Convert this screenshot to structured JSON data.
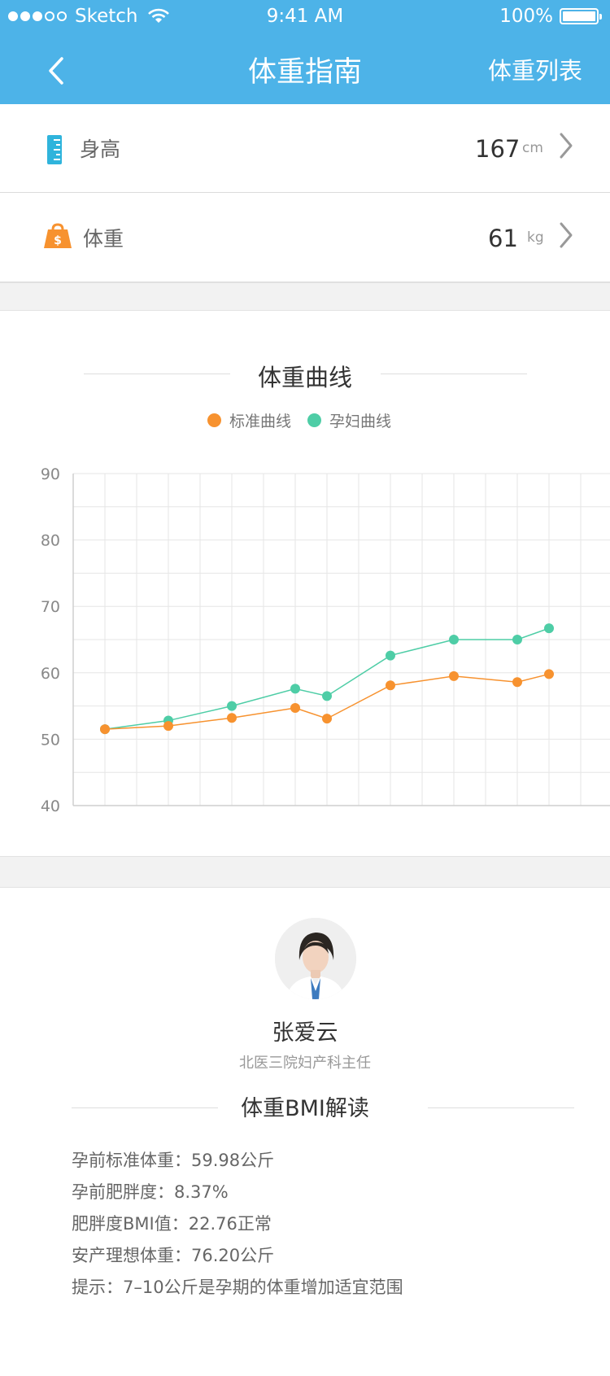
{
  "status_bar": {
    "carrier": "Sketch",
    "time": "9:41 AM",
    "battery": "100%"
  },
  "nav": {
    "title": "体重指南",
    "right_label": "体重列表"
  },
  "height_row": {
    "label": "身高",
    "value": "167",
    "unit": "cm"
  },
  "weight_row": {
    "label": "体重",
    "value": "61",
    "unit": "kg"
  },
  "chart_section": {
    "title": "体重曲线"
  },
  "chart_data": {
    "type": "line",
    "y_ticks": [
      "90",
      "80",
      "70",
      "60",
      "50",
      "40"
    ],
    "ylim": [
      40,
      90
    ],
    "grid": true,
    "legend_position": "top-center",
    "series": [
      {
        "name": "标准曲线",
        "color": "#f7922f",
        "x": [
          1,
          3,
          5,
          7,
          8,
          10,
          12,
          14,
          15
        ],
        "values": [
          51.5,
          52,
          53.2,
          54.7,
          53.1,
          58.1,
          59.5,
          58.6,
          59.8
        ]
      },
      {
        "name": "孕妇曲线",
        "color": "#4ecda6",
        "x": [
          1,
          3,
          5,
          7,
          8,
          10,
          12,
          14,
          15
        ],
        "values": [
          51.5,
          52.8,
          55,
          57.6,
          56.5,
          62.6,
          65,
          65,
          66.7
        ]
      }
    ]
  },
  "doctor": {
    "name": "张爱云",
    "title": "北医三院妇产科主任"
  },
  "bmi_section": {
    "title": "体重BMI解读",
    "lines": [
      "孕前标准体重：59.98公斤",
      "孕前肥胖度：8.37%",
      "肥胖度BMI值：22.76正常",
      "安产理想体重：76.20公斤",
      "提示：7–10公斤是孕期的体重增加适宜范围"
    ]
  }
}
